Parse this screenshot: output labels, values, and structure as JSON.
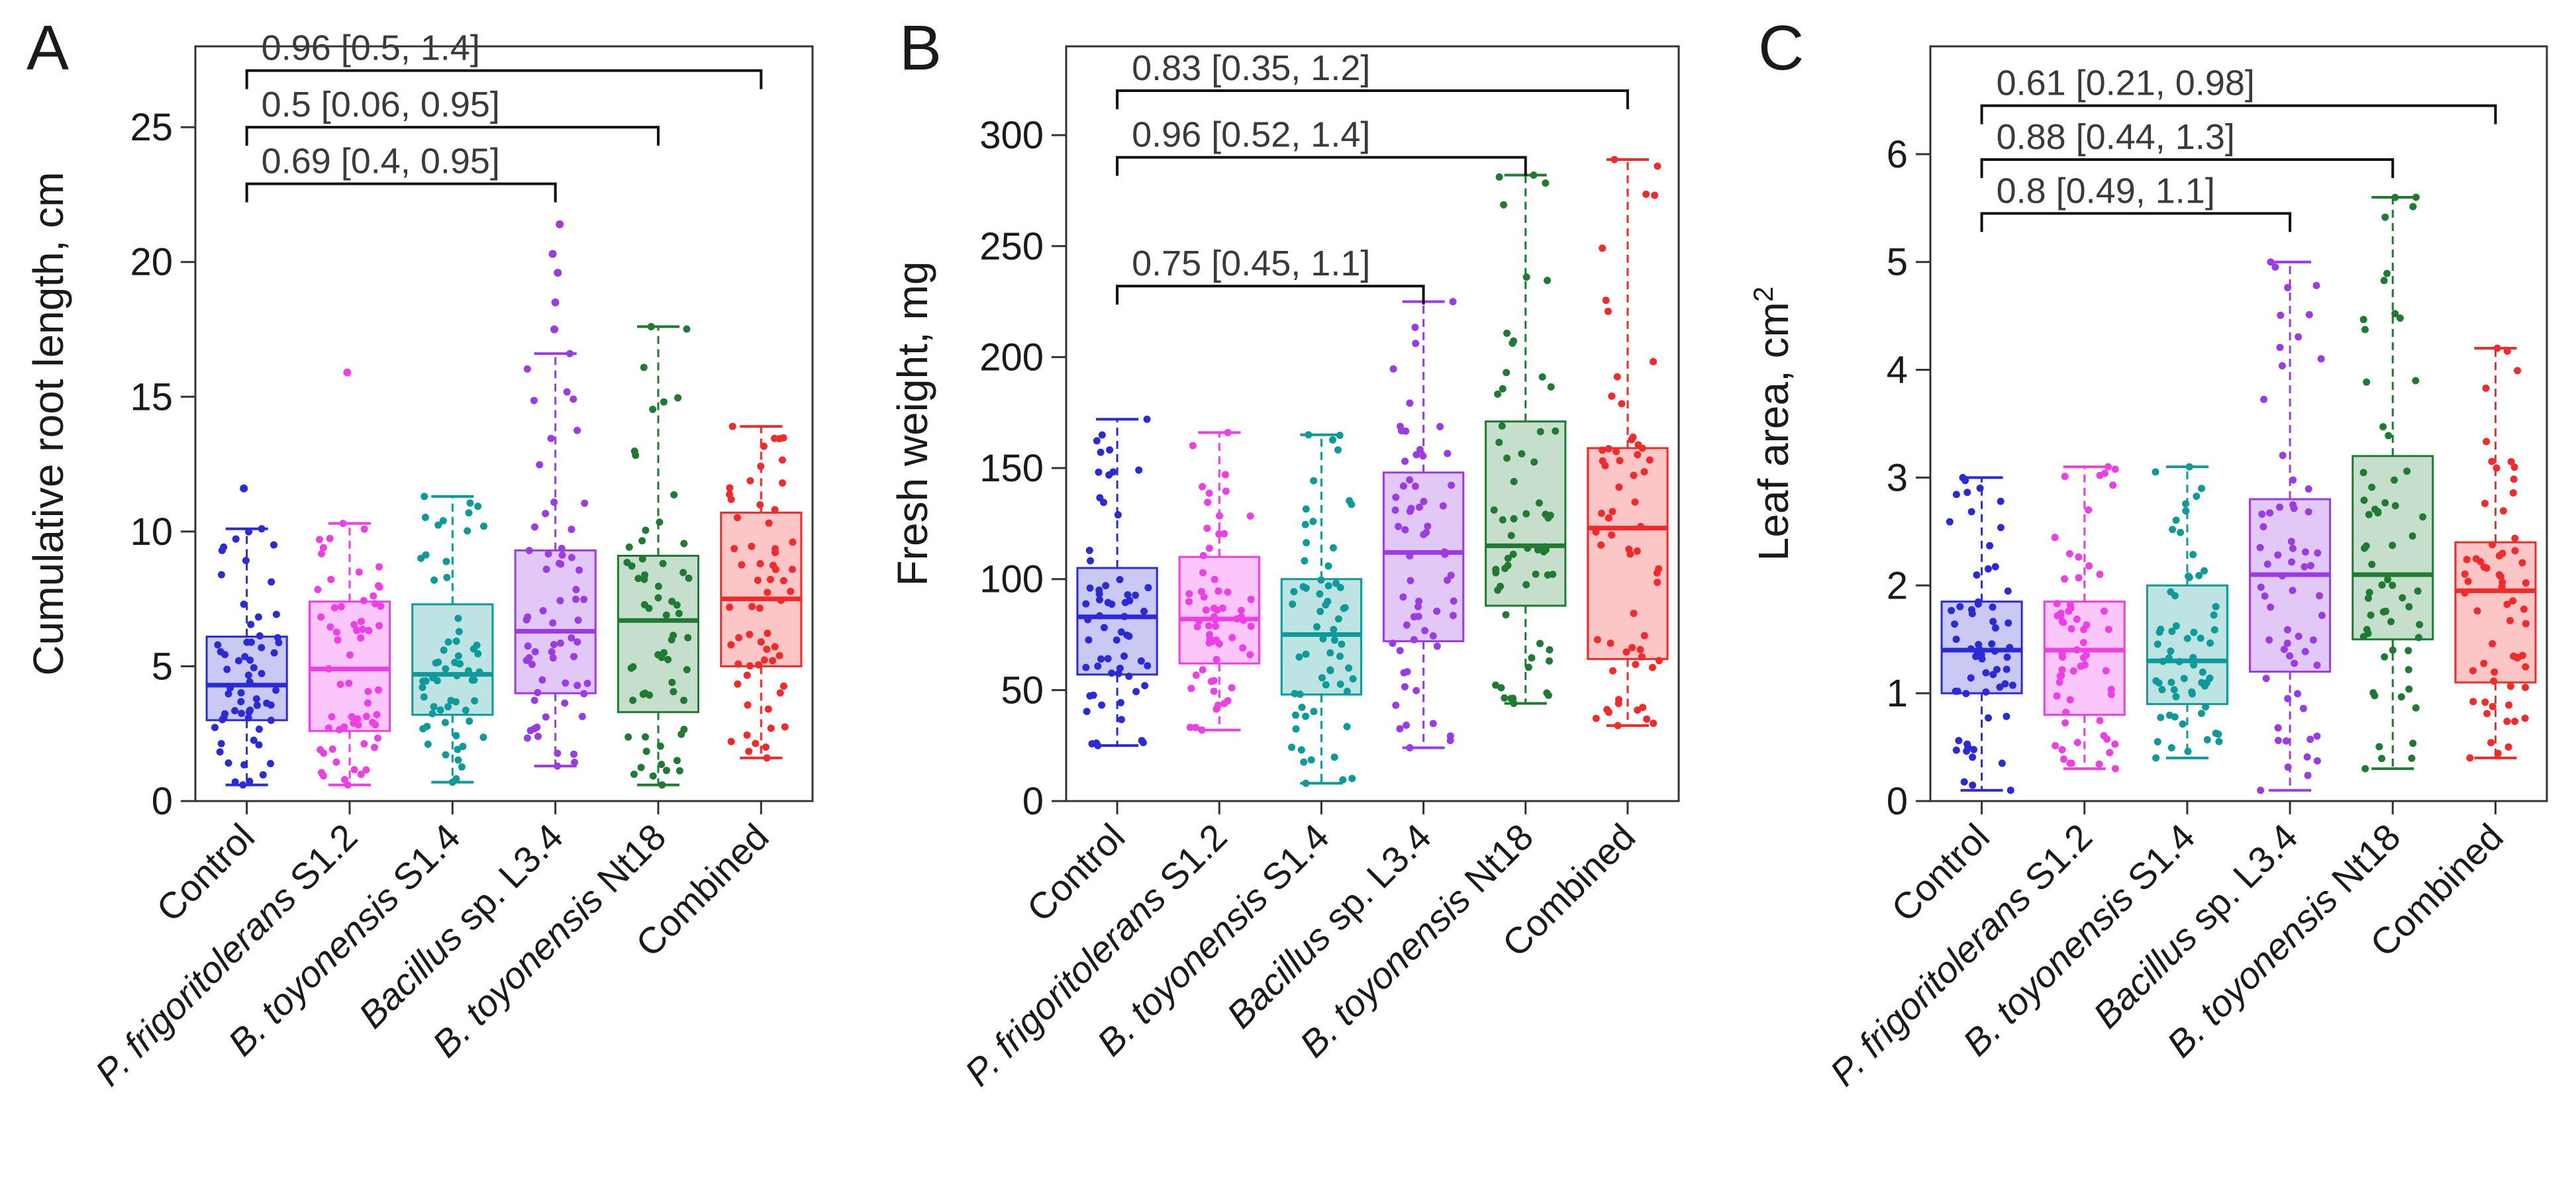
{
  "chart_data": [
    {
      "type": "box",
      "panel": "A",
      "ylabel": "Cumulative root length, cm",
      "ylim": [
        0,
        28
      ],
      "yticks": [
        0,
        5,
        10,
        15,
        20,
        25
      ],
      "categories": [
        {
          "pre": "",
          "italic": "",
          "post": "Control"
        },
        {
          "pre": "",
          "italic": "P. frigoritolerans",
          "post": " S1.2"
        },
        {
          "pre": "",
          "italic": "B. toyonensis",
          "post": " S1.4"
        },
        {
          "pre": "",
          "italic": "Bacillus",
          "post": " sp. L3.4"
        },
        {
          "pre": "",
          "italic": "B. toyonensis",
          "post": " Nt18"
        },
        {
          "pre": "",
          "italic": "",
          "post": "Combined"
        }
      ],
      "boxes": [
        {
          "min": 0.6,
          "q1": 3.0,
          "median": 4.3,
          "q3": 6.1,
          "max": 10.1,
          "outliers": [
            11.6
          ]
        },
        {
          "min": 0.6,
          "q1": 2.6,
          "median": 4.9,
          "q3": 7.4,
          "max": 10.3,
          "outliers": [
            15.9
          ]
        },
        {
          "min": 0.7,
          "q1": 3.2,
          "median": 4.7,
          "q3": 7.3,
          "max": 11.3,
          "outliers": []
        },
        {
          "min": 1.3,
          "q1": 4.0,
          "median": 6.3,
          "q3": 9.3,
          "max": 16.6,
          "outliers": [
            17.5,
            18.5,
            19.6,
            20.3,
            21.4
          ]
        },
        {
          "min": 0.6,
          "q1": 3.3,
          "median": 6.7,
          "q3": 9.1,
          "max": 17.6,
          "outliers": []
        },
        {
          "min": 1.6,
          "q1": 5.0,
          "median": 7.5,
          "q3": 10.7,
          "max": 13.9,
          "outliers": []
        }
      ],
      "comparisons": [
        {
          "from": 0,
          "to": 3,
          "label": "0.69  [0.4, 0.95]",
          "y": 22.9
        },
        {
          "from": 0,
          "to": 4,
          "label": "0.5  [0.06, 0.95]",
          "y": 25.0
        },
        {
          "from": 0,
          "to": 5,
          "label": "0.96  [0.5, 1.4]",
          "y": 27.1
        }
      ]
    },
    {
      "type": "box",
      "panel": "B",
      "ylabel": "Fresh weight, mg",
      "ylim": [
        0,
        340
      ],
      "yticks": [
        0,
        50,
        100,
        150,
        200,
        250,
        300
      ],
      "categories": [
        {
          "pre": "",
          "italic": "",
          "post": "Control"
        },
        {
          "pre": "",
          "italic": "P. frigoritolerans",
          "post": " S1.2"
        },
        {
          "pre": "",
          "italic": "B. toyonensis",
          "post": " S1.4"
        },
        {
          "pre": "",
          "italic": "Bacillus",
          "post": " sp. L3.4"
        },
        {
          "pre": "",
          "italic": "B. toyonensis",
          "post": " Nt18"
        },
        {
          "pre": "",
          "italic": "",
          "post": "Combined"
        }
      ],
      "boxes": [
        {
          "min": 25,
          "q1": 57,
          "median": 83,
          "q3": 105,
          "max": 172,
          "outliers": []
        },
        {
          "min": 32,
          "q1": 62,
          "median": 82,
          "q3": 110,
          "max": 166,
          "outliers": []
        },
        {
          "min": 8,
          "q1": 48,
          "median": 75,
          "q3": 100,
          "max": 165,
          "outliers": []
        },
        {
          "min": 24,
          "q1": 72,
          "median": 112,
          "q3": 148,
          "max": 225,
          "outliers": []
        },
        {
          "min": 44,
          "q1": 88,
          "median": 115,
          "q3": 171,
          "max": 282,
          "outliers": []
        },
        {
          "min": 34,
          "q1": 64,
          "median": 123,
          "q3": 159,
          "max": 289,
          "outliers": []
        }
      ],
      "comparisons": [
        {
          "from": 0,
          "to": 3,
          "label": "0.75  [0.45, 1.1]",
          "y": 232
        },
        {
          "from": 0,
          "to": 4,
          "label": "0.96  [0.52, 1.4]",
          "y": 290
        },
        {
          "from": 0,
          "to": 5,
          "label": "0.83  [0.35, 1.2]",
          "y": 320
        }
      ]
    },
    {
      "type": "box",
      "panel": "C",
      "ylabel": "Leaf area, cm",
      "ylabel_sup": "2",
      "ylim": [
        0,
        7
      ],
      "yticks": [
        0,
        1,
        2,
        3,
        4,
        5,
        6
      ],
      "categories": [
        {
          "pre": "",
          "italic": "",
          "post": "Control"
        },
        {
          "pre": "",
          "italic": "P. frigoritolerans",
          "post": " S1.2"
        },
        {
          "pre": "",
          "italic": "B. toyonensis",
          "post": " S1.4"
        },
        {
          "pre": "",
          "italic": "Bacillus",
          "post": " sp. L3.4"
        },
        {
          "pre": "",
          "italic": "B. toyonensis",
          "post": " Nt18"
        },
        {
          "pre": "",
          "italic": "",
          "post": "Combined"
        }
      ],
      "boxes": [
        {
          "min": 0.1,
          "q1": 1.0,
          "median": 1.4,
          "q3": 1.85,
          "max": 3.0,
          "outliers": []
        },
        {
          "min": 0.3,
          "q1": 0.8,
          "median": 1.4,
          "q3": 1.85,
          "max": 3.1,
          "outliers": []
        },
        {
          "min": 0.4,
          "q1": 0.9,
          "median": 1.3,
          "q3": 2.0,
          "max": 3.1,
          "outliers": []
        },
        {
          "min": 0.1,
          "q1": 1.2,
          "median": 2.1,
          "q3": 2.8,
          "max": 5.0,
          "outliers": []
        },
        {
          "min": 0.3,
          "q1": 1.5,
          "median": 2.1,
          "q3": 3.2,
          "max": 5.6,
          "outliers": []
        },
        {
          "min": 0.4,
          "q1": 1.1,
          "median": 1.95,
          "q3": 2.4,
          "max": 4.2,
          "outliers": []
        }
      ],
      "comparisons": [
        {
          "from": 0,
          "to": 3,
          "label": "0.8  [0.49, 1.1]",
          "y": 5.45
        },
        {
          "from": 0,
          "to": 4,
          "label": "0.88  [0.44, 1.3]",
          "y": 5.95
        },
        {
          "from": 0,
          "to": 5,
          "label": "0.61  [0.21, 0.98]",
          "y": 6.45
        }
      ]
    }
  ],
  "colors": {
    "series": [
      "#2a2ad6",
      "#ee3ee6",
      "#0d9a9a",
      "#9a3be6",
      "#1f7a32",
      "#f22a2a"
    ],
    "fill": [
      "#c9c9f4",
      "#fbc6f9",
      "#bde3e3",
      "#e2c8f6",
      "#c6dfcc",
      "#fcc6c6"
    ],
    "axis": "#333333"
  }
}
